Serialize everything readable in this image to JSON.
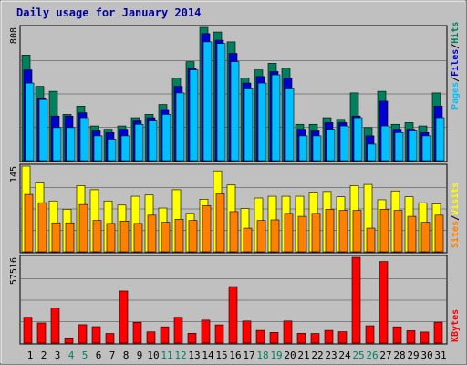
{
  "title": "Daily usage for January 2014",
  "colors": {
    "background": "#c0c0c0",
    "panel": "#c0c0c0",
    "frame_light": "#ffffff",
    "frame_dark": "#808080",
    "grid": "#808080",
    "title": "#0000a0",
    "hits": "#00805c",
    "files": "#0000d0",
    "pages": "#00c0ff",
    "visits": "#ffff00",
    "sites": "#ff8000",
    "kbytes": "#ff0000",
    "weekend_day": "#00805c",
    "weekday": "#000000"
  },
  "chart_data": [
    {
      "type": "bar",
      "panel": "hits-files-pages",
      "ylabel_max": "808",
      "ylim": [
        0,
        808
      ],
      "legend": [
        {
          "label": "Hits",
          "color_key": "hits"
        },
        {
          "label": "Files",
          "color_key": "files"
        },
        {
          "label": "Pages",
          "color_key": "pages"
        }
      ],
      "legend_separator": "/",
      "series": [
        {
          "name": "Hits",
          "color_key": "hits",
          "values": [
            640,
            450,
            420,
            280,
            330,
            210,
            190,
            210,
            260,
            280,
            340,
            500,
            600,
            808,
            780,
            720,
            500,
            550,
            590,
            560,
            220,
            220,
            260,
            250,
            410,
            200,
            420,
            220,
            230,
            210,
            410
          ]
        },
        {
          "name": "Files",
          "color_key": "files",
          "values": [
            550,
            380,
            270,
            270,
            290,
            180,
            170,
            190,
            240,
            260,
            310,
            450,
            560,
            770,
            730,
            650,
            470,
            510,
            540,
            500,
            190,
            180,
            230,
            230,
            270,
            150,
            360,
            190,
            190,
            170,
            330
          ]
        },
        {
          "name": "Pages",
          "color_key": "pages",
          "values": [
            470,
            370,
            200,
            200,
            260,
            150,
            130,
            150,
            220,
            240,
            280,
            410,
            550,
            720,
            710,
            600,
            440,
            470,
            520,
            440,
            150,
            150,
            190,
            210,
            260,
            100,
            210,
            170,
            180,
            150,
            260
          ]
        }
      ]
    },
    {
      "type": "bar",
      "panel": "visits-sites",
      "ylabel_max": "145",
      "ylim": [
        0,
        145
      ],
      "legend": [
        {
          "label": "Visits",
          "color_key": "visits"
        },
        {
          "label": "Sites",
          "color_key": "sites"
        }
      ],
      "legend_separator": "/",
      "series": [
        {
          "name": "Visits",
          "color_key": "visits",
          "values": [
            145,
            118,
            86,
            72,
            112,
            105,
            86,
            79,
            94,
            96,
            74,
            105,
            65,
            89,
            137,
            113,
            73,
            91,
            94,
            94,
            94,
            101,
            102,
            93,
            112,
            114,
            88,
            103,
            93,
            83,
            81
          ]
        },
        {
          "name": "Sites",
          "color_key": "sites",
          "values": [
            97,
            83,
            49,
            49,
            80,
            53,
            48,
            52,
            48,
            62,
            50,
            55,
            53,
            78,
            98,
            68,
            40,
            53,
            54,
            65,
            60,
            65,
            72,
            70,
            70,
            40,
            72,
            70,
            60,
            50,
            62
          ]
        }
      ]
    },
    {
      "type": "bar",
      "panel": "kbytes",
      "ylabel_max": "57516",
      "ylim": [
        0,
        57516
      ],
      "legend": [
        {
          "label": "KBytes",
          "color_key": "kbytes"
        }
      ],
      "legend_separator": "",
      "series": [
        {
          "name": "KBytes",
          "color_key": "kbytes",
          "values": [
            17300,
            13500,
            23500,
            3500,
            12300,
            11000,
            6400,
            34900,
            13900,
            7500,
            10900,
            17300,
            6500,
            15400,
            12200,
            37900,
            14800,
            8500,
            7100,
            14800,
            6500,
            6400,
            8500,
            7600,
            57516,
            11600,
            54700,
            10900,
            8300,
            7400,
            14000
          ]
        }
      ]
    }
  ],
  "x_axis": {
    "labels": [
      "1",
      "2",
      "3",
      "4",
      "5",
      "6",
      "7",
      "8",
      "9",
      "10",
      "11",
      "12",
      "13",
      "14",
      "15",
      "16",
      "17",
      "18",
      "19",
      "20",
      "21",
      "22",
      "23",
      "24",
      "25",
      "26",
      "27",
      "28",
      "29",
      "30",
      "31"
    ],
    "weekend_labels": [
      "4",
      "5",
      "11",
      "12",
      "18",
      "19",
      "25",
      "26"
    ]
  }
}
